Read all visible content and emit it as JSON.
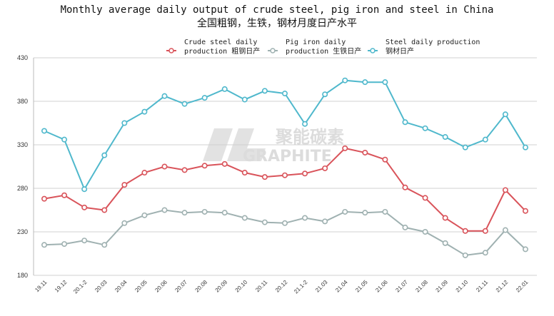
{
  "chart_data": {
    "type": "line",
    "title": "Monthly average daily output of crude steel, pig iron and steel in China",
    "subtitle": "全国粗钢，生铁，钢材月度日产水平",
    "categories": [
      "19.11",
      "19.12",
      "20.1-2",
      "20.03",
      "20.04",
      "20.05",
      "20.06",
      "20.07",
      "20.08",
      "20.09",
      "20.10",
      "20.11",
      "20.12",
      "21.1-2",
      "21.03",
      "21.04",
      "21.05",
      "21.06",
      "21.07",
      "21.08",
      "21.09",
      "21.10",
      "21.11",
      "21.12",
      "22.01"
    ],
    "ylim": [
      180,
      430
    ],
    "yticks": [
      180,
      230,
      280,
      330,
      380,
      430
    ],
    "grid": true,
    "legend_position": "top",
    "series": [
      {
        "name_line1": "Crude steel daily",
        "name_line2": "production 粗钢日产",
        "color": "#d9535a",
        "values": [
          268,
          272,
          258,
          255,
          284,
          298,
          305,
          301,
          306,
          308,
          298,
          293,
          295,
          297,
          303,
          326,
          321,
          313,
          281,
          269,
          246,
          231,
          231,
          278,
          254
        ]
      },
      {
        "name_line1": "Pig iron daily",
        "name_line2": "production 生铁日产",
        "color": "#9fb1b1",
        "values": [
          215,
          216,
          220,
          215,
          240,
          249,
          255,
          252,
          253,
          252,
          246,
          241,
          240,
          246,
          242,
          253,
          252,
          253,
          235,
          230,
          217,
          203,
          206,
          232,
          210
        ]
      },
      {
        "name_line1": "Steel daily production",
        "name_line2": "钢材日产",
        "color": "#4fb8cc",
        "values": [
          346,
          336,
          279,
          318,
          355,
          368,
          386,
          377,
          384,
          394,
          382,
          392,
          389,
          354,
          388,
          404,
          402,
          402,
          356,
          349,
          339,
          327,
          336,
          365,
          327
        ]
      }
    ]
  },
  "watermark": {
    "line1": "聚能碳素",
    "line2": "GRAPHITE"
  }
}
